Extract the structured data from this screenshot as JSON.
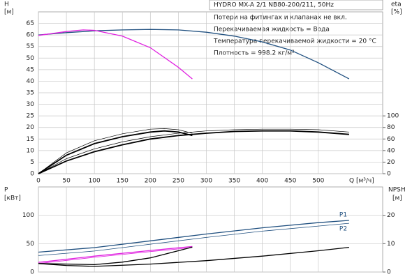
{
  "header": {
    "title": "HYDRO MX-A 2/1 NB80-200/211, 50Hz"
  },
  "notes": [
    "Потери на фитингах и клапанах не вкл.",
    "Перекачиваемая жидкость = Вода",
    "Температура перекачиваемой жидкости = 20 °C",
    "Плотность = 998.2 кг/м³"
  ],
  "chart_data": [
    {
      "type": "line",
      "x_label": "Q [м³/ч]",
      "y_label": "H",
      "y_unit": "[м]",
      "y2_label": "eta",
      "y2_unit": "[%]",
      "xlim": [
        0,
        615
      ],
      "xticks": [
        0,
        50,
        100,
        150,
        200,
        250,
        300,
        350,
        400,
        450,
        500
      ],
      "show_xtick_labels": true,
      "ylim": [
        0,
        70
      ],
      "yticks": [
        0,
        5,
        10,
        15,
        20,
        25,
        30,
        35,
        40,
        45,
        50,
        55,
        60,
        65
      ],
      "y2lim": [
        0,
        280
      ],
      "y2ticks": [
        0,
        20,
        40,
        60,
        80,
        100
      ],
      "grid": true,
      "series": [
        {
          "color": "#1f4f7f",
          "line_width": 1.3,
          "axis": "y",
          "x": [
            0,
            50,
            100,
            150,
            200,
            250,
            300,
            350,
            400,
            450,
            500,
            555
          ],
          "values": [
            60,
            61,
            61.8,
            62.2,
            62.4,
            62.2,
            61.2,
            59.5,
            57,
            53.5,
            48,
            41
          ]
        },
        {
          "color": "#e020e0",
          "line_width": 1.3,
          "axis": "y",
          "x": [
            0,
            50,
            80,
            100,
            150,
            200,
            250,
            275
          ],
          "values": [
            59.8,
            61.5,
            62.2,
            62,
            59.5,
            54.5,
            46,
            41
          ]
        },
        {
          "color": "#000000",
          "line_width": 1.8,
          "axis": "y2",
          "x": [
            0,
            50,
            100,
            150,
            200,
            250,
            300,
            350,
            400,
            450,
            500,
            555
          ],
          "values": [
            0,
            22,
            38,
            50,
            60,
            66,
            70,
            73,
            74,
            74,
            72,
            68
          ]
        },
        {
          "color": "#000000",
          "line_width": 0.7,
          "axis": "y2",
          "x": [
            0,
            50,
            100,
            150,
            200,
            250,
            300,
            350,
            400,
            450,
            500,
            555
          ],
          "values": [
            0,
            26,
            43,
            55,
            64,
            70,
            74,
            76,
            77,
            77,
            76,
            72
          ]
        },
        {
          "color": "#000000",
          "line_width": 1.8,
          "axis": "y2",
          "x": [
            0,
            50,
            100,
            150,
            200,
            225,
            250,
            275
          ],
          "values": [
            0,
            32,
            52,
            64,
            72,
            74,
            72,
            66
          ]
        },
        {
          "color": "#000000",
          "line_width": 0.7,
          "axis": "y2",
          "x": [
            0,
            50,
            100,
            150,
            200,
            225,
            250,
            275
          ],
          "values": [
            0,
            36,
            57,
            69,
            77,
            78,
            76,
            70
          ]
        }
      ]
    },
    {
      "type": "line",
      "y_label": "P",
      "y_unit": "[кВт]",
      "y2_label": "NPSH",
      "y2_unit": "[м]",
      "xlim": [
        0,
        615
      ],
      "xticks": [
        0,
        50,
        100,
        150,
        200,
        250,
        300,
        350,
        400,
        450,
        500
      ],
      "show_xtick_labels": false,
      "ylim": [
        0,
        150
      ],
      "yticks": [
        0,
        50,
        100
      ],
      "y2lim": [
        0,
        30
      ],
      "y2ticks": [
        0,
        10,
        20
      ],
      "grid": true,
      "series": [
        {
          "name": "P1",
          "color": "#1f4f7f",
          "line_width": 1.3,
          "axis": "y",
          "x": [
            0,
            100,
            200,
            300,
            400,
            500,
            555
          ],
          "values": [
            35,
            43,
            55,
            67,
            78,
            87,
            91
          ]
        },
        {
          "name": "P2",
          "color": "#1f4f7f",
          "line_width": 0.8,
          "axis": "y",
          "x": [
            0,
            100,
            200,
            300,
            400,
            500,
            555
          ],
          "values": [
            29,
            37,
            49,
            61,
            72,
            81,
            86
          ]
        },
        {
          "color": "#e020e0",
          "line_width": 1.3,
          "axis": "y",
          "x": [
            0,
            100,
            200,
            275
          ],
          "values": [
            17,
            28,
            38,
            45
          ]
        },
        {
          "color": "#e020e0",
          "line_width": 0.8,
          "axis": "y",
          "x": [
            0,
            100,
            200,
            275
          ],
          "values": [
            15,
            26,
            36,
            43
          ]
        },
        {
          "color": "#000000",
          "line_width": 1.3,
          "axis": "y2",
          "x": [
            0,
            50,
            100,
            200,
            300,
            400,
            500,
            555
          ],
          "values": [
            3,
            2.3,
            2,
            2.8,
            4,
            5.6,
            7.5,
            8.7
          ]
        },
        {
          "color": "#000000",
          "line_width": 1.3,
          "axis": "y2",
          "x": [
            0,
            100,
            150,
            200,
            250,
            275
          ],
          "values": [
            3,
            2.6,
            3.5,
            5,
            7.5,
            8.8
          ]
        }
      ]
    }
  ]
}
